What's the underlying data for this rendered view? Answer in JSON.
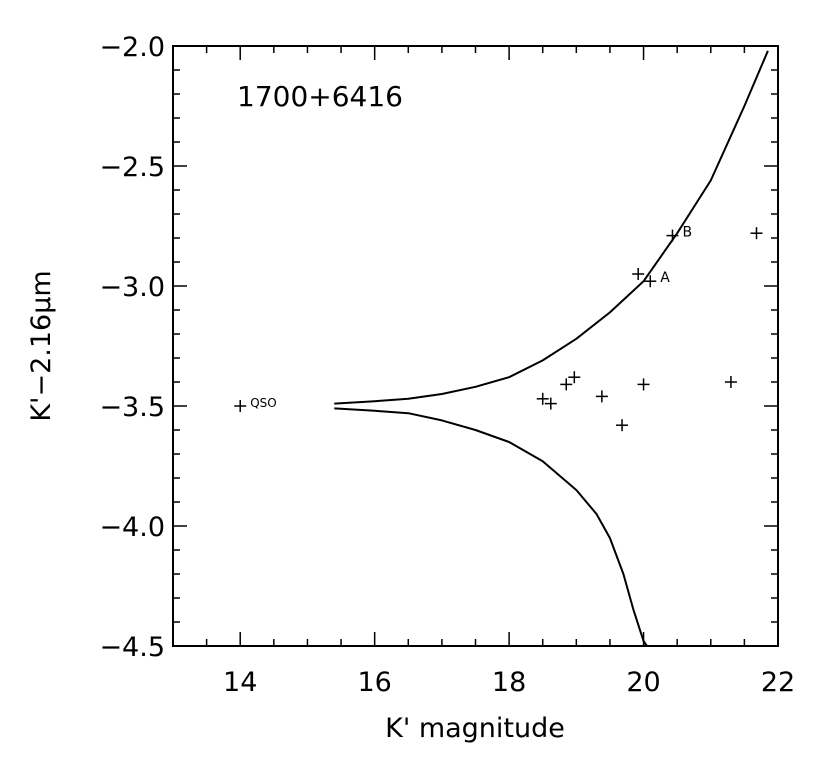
{
  "chart_data": {
    "type": "scatter",
    "title": "1700+6416",
    "xlabel": "K' magnitude",
    "ylabel": "K'−2.16μm",
    "xlim": [
      13,
      22
    ],
    "ylim": [
      -4.5,
      -2.0
    ],
    "x_ticks": [
      14,
      16,
      18,
      20,
      22
    ],
    "x_tick_labels": [
      "14",
      "16",
      "18",
      "20",
      "22"
    ],
    "y_ticks": [
      -2.0,
      -2.5,
      -3.0,
      -3.5,
      -4.0,
      -4.5
    ],
    "y_tick_labels": [
      "−2.0",
      "−2.5",
      "−3.0",
      "−3.5",
      "−4.0",
      "−4.5"
    ],
    "grid": false,
    "points": [
      {
        "x": 14.0,
        "y": -3.5,
        "label": "QSO"
      },
      {
        "x": 18.5,
        "y": -3.47,
        "label": ""
      },
      {
        "x": 18.62,
        "y": -3.49,
        "label": ""
      },
      {
        "x": 18.85,
        "y": -3.41,
        "label": ""
      },
      {
        "x": 18.97,
        "y": -3.38,
        "label": ""
      },
      {
        "x": 19.38,
        "y": -3.46,
        "label": ""
      },
      {
        "x": 19.68,
        "y": -3.58,
        "label": ""
      },
      {
        "x": 19.92,
        "y": -2.95,
        "label": ""
      },
      {
        "x": 20.0,
        "y": -3.41,
        "label": ""
      },
      {
        "x": 20.1,
        "y": -2.98,
        "label": "A"
      },
      {
        "x": 20.43,
        "y": -2.79,
        "label": "B"
      },
      {
        "x": 21.3,
        "y": -3.4,
        "label": ""
      },
      {
        "x": 21.68,
        "y": -2.78,
        "label": ""
      }
    ],
    "curves": [
      {
        "name": "",
        "x": [
          15.4,
          16.0,
          16.5,
          17.0,
          17.5,
          18.0,
          18.5,
          19.0,
          19.5,
          20.0,
          20.5,
          21.0,
          21.5,
          21.85
        ],
        "y": [
          -3.49,
          -3.48,
          -3.47,
          -3.45,
          -3.42,
          -3.38,
          -3.31,
          -3.22,
          -3.11,
          -2.98,
          -2.78,
          -2.56,
          -2.25,
          -2.02
        ]
      },
      {
        "name": "",
        "x": [
          15.4,
          16.0,
          16.5,
          17.0,
          17.5,
          18.0,
          18.5,
          19.0,
          19.3,
          19.5,
          19.7,
          19.85,
          20.0,
          20.05
        ],
        "y": [
          -3.51,
          -3.52,
          -3.53,
          -3.56,
          -3.6,
          -3.65,
          -3.73,
          -3.85,
          -3.95,
          -4.05,
          -4.2,
          -4.35,
          -4.48,
          -4.5
        ]
      }
    ]
  }
}
